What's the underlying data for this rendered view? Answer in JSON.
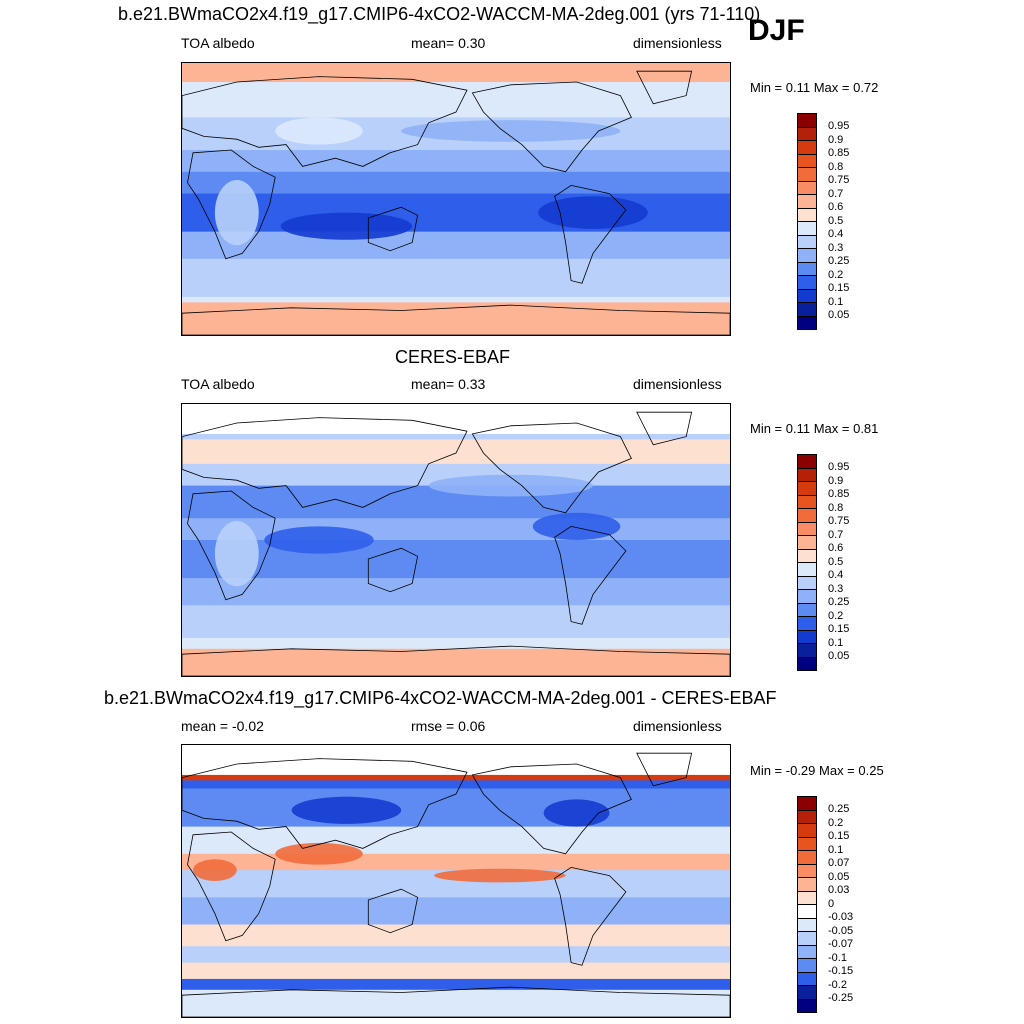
{
  "season": "DJF",
  "panels": [
    {
      "title": "b.e21.BWmaCO2x4.f19_g17.CMIP6-4xCO2-WACCM-MA-2deg.001 (yrs 71-110)",
      "left": "TOA albedo",
      "center": "mean=   0.30",
      "right": "dimensionless",
      "minmax": "Min =   0.11 Max =   0.72",
      "colorbar": {
        "labels": [
          "0.95",
          "0.9",
          "0.85",
          "0.8",
          "0.75",
          "0.7",
          "0.6",
          "0.5",
          "0.4",
          "0.3",
          "0.25",
          "0.2",
          "0.15",
          "0.1",
          "0.05"
        ],
        "colors": [
          "#8b0000",
          "#b52008",
          "#d63b10",
          "#e8541f",
          "#f26b3b",
          "#f98c64",
          "#fcb495",
          "#fde0cf",
          "#dce9fb",
          "#b8d0fa",
          "#8fb1f7",
          "#5d8bf2",
          "#2f5fea",
          "#143bd0",
          "#0a1f9c",
          "#000080"
        ]
      }
    },
    {
      "title": "CERES-EBAF",
      "left": "TOA albedo",
      "center": "mean=   0.33",
      "right": "dimensionless",
      "minmax": "Min =   0.11 Max =   0.81",
      "colorbar": {
        "labels": [
          "0.95",
          "0.9",
          "0.85",
          "0.8",
          "0.75",
          "0.7",
          "0.6",
          "0.5",
          "0.4",
          "0.3",
          "0.25",
          "0.2",
          "0.15",
          "0.1",
          "0.05"
        ],
        "colors": [
          "#8b0000",
          "#b52008",
          "#d63b10",
          "#e8541f",
          "#f26b3b",
          "#f98c64",
          "#fcb495",
          "#fde0cf",
          "#dce9fb",
          "#b8d0fa",
          "#8fb1f7",
          "#5d8bf2",
          "#2f5fea",
          "#143bd0",
          "#0a1f9c",
          "#000080"
        ]
      }
    },
    {
      "title": "b.e21.BWmaCO2x4.f19_g17.CMIP6-4xCO2-WACCM-MA-2deg.001 - CERES-EBAF",
      "left": "mean =  -0.02",
      "center": "rmse =   0.06",
      "right": "dimensionless",
      "minmax": "Min =  -0.29 Max =   0.25",
      "colorbar": {
        "labels": [
          "0.25",
          "0.2",
          "0.15",
          "0.1",
          "0.07",
          "0.05",
          "0.03",
          "0",
          "-0.03",
          "-0.05",
          "-0.07",
          "-0.1",
          "-0.15",
          "-0.2",
          "-0.25"
        ],
        "colors": [
          "#8b0000",
          "#b52008",
          "#d63b10",
          "#e8541f",
          "#f26b3b",
          "#f98c64",
          "#fcb495",
          "#fde0cf",
          "#ffffff",
          "#dce9fb",
          "#b8d0fa",
          "#8fb1f7",
          "#5d8bf2",
          "#2f5fea",
          "#0a1f9c",
          "#000080"
        ]
      }
    }
  ]
}
